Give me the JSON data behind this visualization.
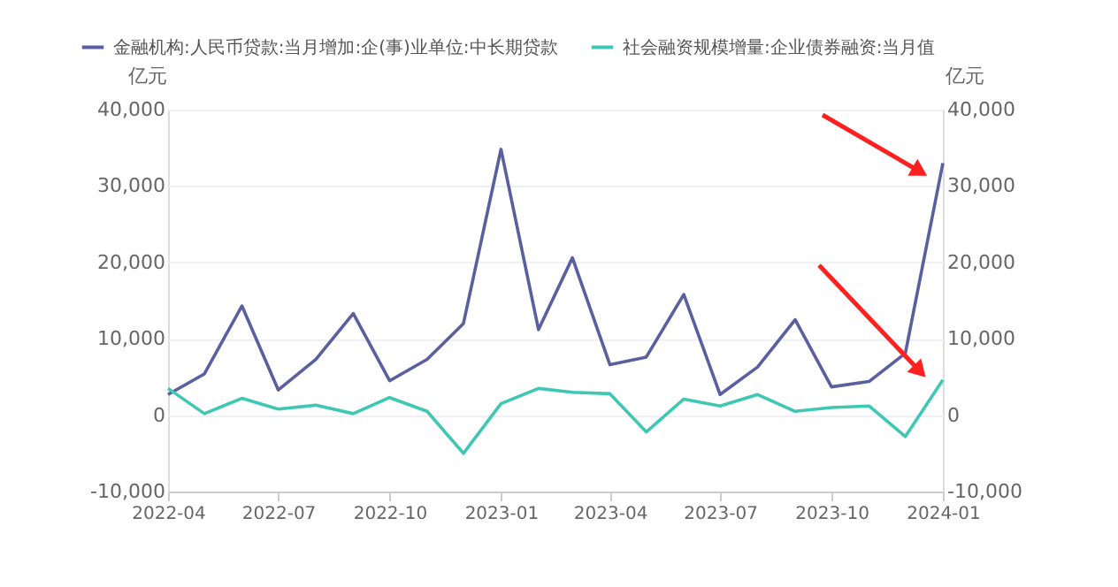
{
  "chart_data": {
    "type": "line",
    "x": [
      "2022-04",
      "2022-05",
      "2022-06",
      "2022-07",
      "2022-08",
      "2022-09",
      "2022-10",
      "2022-11",
      "2022-12",
      "2023-01",
      "2023-02",
      "2023-03",
      "2023-04",
      "2023-05",
      "2023-06",
      "2023-07",
      "2023-08",
      "2023-09",
      "2023-10",
      "2023-11",
      "2023-12",
      "2024-01"
    ],
    "series": [
      {
        "name": "金融机构:人民币贷款:当月增加:企(事)业单位:中长期贷款",
        "color": "#5a5fa0",
        "values": [
          2700,
          5400,
          14300,
          3300,
          7300,
          13300,
          4500,
          7300,
          12000,
          34800,
          11200,
          20600,
          6600,
          7600,
          15800,
          2700,
          6300,
          12500,
          3700,
          4400,
          8100,
          33000
        ]
      },
      {
        "name": "社会融资规模增量:企业债券融资:当月值",
        "color": "#3ec8b4",
        "values": [
          3500,
          200,
          2200,
          800,
          1300,
          200,
          2300,
          500,
          -5000,
          1500,
          3500,
          3000,
          2800,
          -2200,
          2100,
          1200,
          2700,
          500,
          1000,
          1200,
          -2800,
          4600
        ]
      }
    ],
    "xlim": [
      "2022-04",
      "2024-01"
    ],
    "xticks": [
      "2022-04",
      "2022-07",
      "2022-10",
      "2023-01",
      "2023-04",
      "2023-07",
      "2023-10",
      "2024-01"
    ],
    "ylim": [
      -10000,
      40000
    ],
    "yticks": [
      {
        "value": -10000,
        "label": "-10,000"
      },
      0,
      {
        "value": 10000,
        "label": "10,000"
      },
      {
        "value": 20000,
        "label": "20,000"
      },
      {
        "value": 30000,
        "label": "30,000"
      },
      {
        "value": 40000,
        "label": "40,000"
      }
    ],
    "y2lim": [
      -10000,
      40000
    ],
    "y2ticks": [
      {
        "value": -10000,
        "label": "-10,000"
      },
      0,
      {
        "value": 10000,
        "label": "10,000"
      },
      {
        "value": 20000,
        "label": "20,000"
      },
      {
        "value": 30000,
        "label": "30,000"
      },
      {
        "value": 40000,
        "label": "40,000"
      }
    ],
    "ylabel": "亿元",
    "y2label": "亿元",
    "grid": "y",
    "legend": "top",
    "marker": "none",
    "line_style": "solid"
  }
}
